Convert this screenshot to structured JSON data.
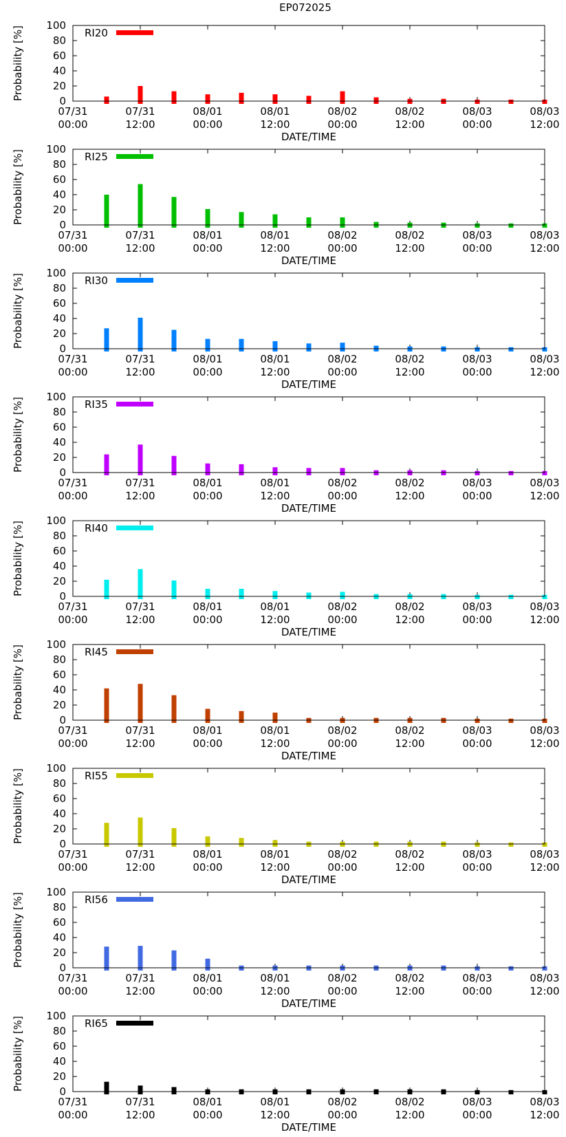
{
  "chart_data": {
    "type": "bar",
    "title": "EP072025",
    "xlabel": "DATE/TIME",
    "ylabel": "Probability [%]",
    "ylim": [
      0,
      100
    ],
    "yticks": [
      "0",
      "20",
      "40",
      "60",
      "80",
      "100"
    ],
    "x_ticks": [
      {
        "date": "07/31",
        "time": "00:00"
      },
      {
        "date": "07/31",
        "time": "12:00"
      },
      {
        "date": "08/01",
        "time": "00:00"
      },
      {
        "date": "08/01",
        "time": "12:00"
      },
      {
        "date": "08/02",
        "time": "00:00"
      },
      {
        "date": "08/02",
        "time": "12:00"
      },
      {
        "date": "08/03",
        "time": "00:00"
      },
      {
        "date": "08/03",
        "time": "12:00"
      }
    ],
    "x_range_hours": [
      0,
      84
    ],
    "bar_hours": [
      6,
      12,
      18,
      24,
      30,
      36,
      42,
      48,
      54,
      60,
      66,
      72,
      78,
      84
    ],
    "legend_position": "top-left",
    "series": [
      {
        "name": "RI20",
        "color": "#ff0000",
        "values": [
          6,
          20,
          13,
          9,
          11,
          9,
          7,
          13,
          5,
          3,
          3,
          2,
          2,
          2
        ]
      },
      {
        "name": "RI25",
        "color": "#00bf00",
        "values": [
          40,
          54,
          37,
          21,
          17,
          14,
          10,
          10,
          4,
          3,
          3,
          2,
          2,
          2
        ]
      },
      {
        "name": "RI30",
        "color": "#0080ff",
        "values": [
          27,
          41,
          25,
          13,
          13,
          10,
          7,
          8,
          4,
          3,
          3,
          2,
          2,
          2
        ]
      },
      {
        "name": "RI35",
        "color": "#c000ff",
        "values": [
          24,
          37,
          22,
          12,
          11,
          7,
          6,
          6,
          3,
          3,
          3,
          2,
          2,
          2
        ]
      },
      {
        "name": "RI40",
        "color": "#00eeee",
        "values": [
          22,
          36,
          21,
          10,
          10,
          7,
          5,
          6,
          3,
          3,
          3,
          2,
          2,
          2
        ]
      },
      {
        "name": "RI45",
        "color": "#c04000",
        "values": [
          42,
          48,
          33,
          15,
          12,
          10,
          3,
          3,
          3,
          3,
          3,
          2,
          2,
          2
        ]
      },
      {
        "name": "RI55",
        "color": "#c8c800",
        "values": [
          28,
          35,
          21,
          10,
          8,
          5,
          3,
          3,
          3,
          3,
          3,
          2,
          2,
          2
        ]
      },
      {
        "name": "RI56",
        "color": "#4169e1",
        "values": [
          28,
          29,
          23,
          12,
          3,
          3,
          3,
          3,
          3,
          3,
          3,
          2,
          2,
          2
        ]
      },
      {
        "name": "RI65",
        "color": "#000000",
        "values": [
          13,
          8,
          6,
          3,
          3,
          3,
          3,
          3,
          3,
          3,
          3,
          2,
          2,
          2
        ]
      }
    ]
  }
}
